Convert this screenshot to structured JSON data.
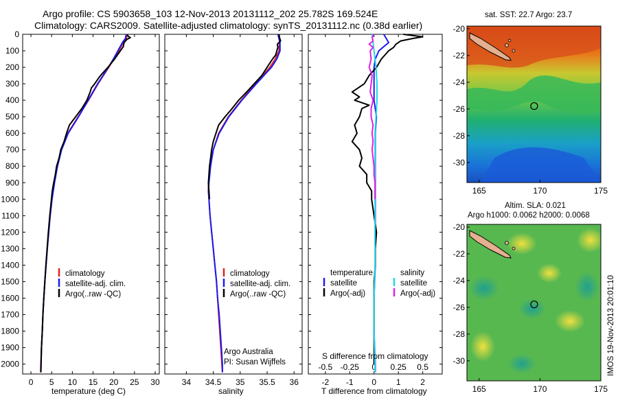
{
  "header": {
    "line1": "Argo profile: CS 5903658_103 12-Nov-2013 20131112_202 25.782S 169.524E",
    "line2": "Climatology: CARS2009. Satellite-adjusted climatology: synTS_20131112.nc (0.38d earlier)"
  },
  "side_stamp": "IMOS 19-Nov-2013 20:01:10",
  "colors": {
    "climatology": "#e02020",
    "satellite": "#1a1af0",
    "argo": "#000000",
    "satellite_s": "#20d8e8",
    "argo_s": "#e020e0",
    "frame": "#000000"
  },
  "chart_data": [
    {
      "type": "line",
      "id": "temperature",
      "xlabel": "temperature (deg C)",
      "xlim": [
        -2,
        31
      ],
      "xticks": [
        0,
        5,
        10,
        15,
        20,
        25,
        30
      ],
      "ylim": [
        0,
        2060
      ],
      "yticks": [
        0,
        100,
        200,
        300,
        400,
        500,
        600,
        700,
        800,
        900,
        1000,
        1100,
        1200,
        1300,
        1400,
        1500,
        1600,
        1700,
        1800,
        1900,
        2000
      ],
      "legend": [
        "climatology",
        "satellite-adj. clim.",
        "Argo(..raw -QC)"
      ],
      "series": [
        {
          "name": "climatology",
          "color": "#e02020",
          "depth": [
            0,
            25,
            50,
            100,
            150,
            200,
            250,
            300,
            400,
            500,
            600,
            700,
            800,
            900,
            1000,
            1100,
            1200,
            1300,
            1400,
            1500,
            1600,
            1700,
            1800,
            1900,
            2000,
            2050
          ],
          "values": [
            23.3,
            23.0,
            22.3,
            21.2,
            20.0,
            18.8,
            17.5,
            16.2,
            13.9,
            11.4,
            8.9,
            7.3,
            6.3,
            5.6,
            5.05,
            4.6,
            4.25,
            3.95,
            3.65,
            3.35,
            3.1,
            2.9,
            2.75,
            2.55,
            2.4,
            2.35
          ]
        },
        {
          "name": "satellite-adj. clim.",
          "color": "#1a1af0",
          "depth": [
            0,
            25,
            50,
            100,
            150,
            200,
            250,
            300,
            400,
            500,
            600,
            700,
            800,
            900,
            1000,
            1100,
            1200,
            1300,
            1400,
            1500,
            1600,
            1700,
            1800,
            1900,
            2000,
            2050
          ],
          "values": [
            23.0,
            22.8,
            22.1,
            21.0,
            19.9,
            18.7,
            17.4,
            16.1,
            13.8,
            11.5,
            9.0,
            7.4,
            6.4,
            5.7,
            5.1,
            4.65,
            4.3,
            3.95,
            3.65,
            3.35,
            3.1,
            2.9,
            2.75,
            2.55,
            2.45,
            2.4
          ]
        },
        {
          "name": "Argo(..raw -QC)",
          "color": "#000000",
          "depth": [
            0,
            10,
            20,
            30,
            50,
            75,
            100,
            125,
            150,
            200,
            250,
            270,
            300,
            325,
            350,
            400,
            450,
            500,
            550,
            600,
            650,
            700,
            750,
            800,
            850,
            900,
            950,
            1000,
            1100,
            1200,
            1300,
            1400,
            1500,
            1600,
            1700,
            1800,
            1900,
            2000,
            2050
          ],
          "values": [
            23.3,
            23.4,
            24.0,
            23.2,
            22.5,
            22.3,
            21.6,
            20.9,
            20.2,
            18.6,
            16.8,
            16.2,
            15.4,
            14.6,
            14.3,
            13.5,
            12.3,
            10.8,
            9.3,
            8.6,
            8.0,
            7.2,
            6.8,
            6.2,
            5.9,
            5.5,
            5.15,
            4.95,
            4.55,
            4.2,
            3.9,
            3.6,
            3.35,
            3.1,
            2.9,
            2.75,
            2.55,
            2.45,
            2.4
          ]
        }
      ]
    },
    {
      "type": "line",
      "id": "salinity",
      "xlabel": "salinity",
      "xlim": [
        33.6,
        36.15
      ],
      "xticks": [
        34,
        34.5,
        35,
        35.5,
        36
      ],
      "ylim": [
        0,
        2060
      ],
      "legend": [
        "climatology",
        "satellite-adj. clim.",
        "Argo(..raw -QC)"
      ],
      "annotation": [
        "Argo Australia",
        "PI: Susan Wijffels"
      ],
      "series": [
        {
          "name": "climatology",
          "color": "#e02020",
          "depth": [
            0,
            50,
            100,
            150,
            200,
            250,
            300,
            400,
            500,
            600,
            700,
            800,
            900,
            950,
            1000,
            1100,
            1200,
            1300,
            1400,
            1500,
            1600,
            1700,
            1800,
            1900,
            2000,
            2050
          ],
          "values": [
            35.72,
            35.73,
            35.72,
            35.65,
            35.55,
            35.42,
            35.28,
            35.02,
            34.78,
            34.6,
            34.5,
            34.44,
            34.41,
            34.41,
            34.42,
            34.44,
            34.47,
            34.5,
            34.53,
            34.56,
            34.58,
            34.6,
            34.62,
            34.64,
            34.66,
            34.67
          ]
        },
        {
          "name": "satellite-adj. clim.",
          "color": "#1a1af0",
          "depth": [
            0,
            50,
            100,
            150,
            200,
            250,
            300,
            400,
            500,
            600,
            700,
            800,
            900,
            950,
            1000,
            1100,
            1200,
            1300,
            1400,
            1500,
            1600,
            1700,
            1800,
            1900,
            2000,
            2050
          ],
          "values": [
            35.7,
            35.74,
            35.74,
            35.68,
            35.58,
            35.44,
            35.3,
            35.03,
            34.79,
            34.61,
            34.5,
            34.45,
            34.42,
            34.41,
            34.42,
            34.44,
            34.47,
            34.5,
            34.53,
            34.56,
            34.58,
            34.61,
            34.63,
            34.65,
            34.67,
            34.67
          ]
        },
        {
          "name": "Argo(..raw -QC)",
          "color": "#000000",
          "depth": [
            0,
            20,
            40,
            60,
            80,
            100,
            125,
            150,
            175,
            200,
            250,
            300,
            350,
            400,
            450,
            500,
            550,
            600,
            650,
            700,
            750,
            800,
            850,
            900,
            950,
            1000
          ],
          "values": [
            35.72,
            35.73,
            35.75,
            35.69,
            35.7,
            35.68,
            35.66,
            35.6,
            35.55,
            35.5,
            35.4,
            35.26,
            35.12,
            34.97,
            34.85,
            34.72,
            34.6,
            34.55,
            34.5,
            34.47,
            34.45,
            34.43,
            34.42,
            34.41,
            34.42,
            34.43
          ]
        }
      ]
    },
    {
      "type": "line",
      "id": "difference",
      "xlabel": "T difference from climatology",
      "xlabel_top": "S difference from climatology",
      "xlim": [
        -2.7,
        2.8
      ],
      "xticks": [
        -2,
        -1,
        0,
        1,
        2
      ],
      "xticks_s": [
        "-0.5",
        "-0.25",
        "0",
        "0.25",
        "0.5"
      ],
      "ylim": [
        0,
        2060
      ],
      "legend_t": [
        "temperature",
        "satellite",
        "Argo(-adj)"
      ],
      "legend_s": [
        "salinity",
        "satellite",
        "Argo(-adj)"
      ],
      "series": [
        {
          "name": "T satellite",
          "color": "#1a1af0",
          "depth": [
            0,
            50,
            100,
            150,
            200,
            250,
            300,
            400,
            500,
            600,
            700,
            800,
            900,
            1000,
            1200,
            1400,
            1600,
            1800,
            2000,
            2050
          ],
          "values": [
            0.4,
            0.6,
            0.2,
            0.05,
            0.0,
            0.0,
            0.0,
            0.0,
            0.1,
            0.05,
            0.05,
            0.05,
            0.05,
            0.05,
            0.05,
            0.05,
            0.0,
            0.0,
            0.05,
            0.05
          ]
        },
        {
          "name": "T Argo(-adj)",
          "color": "#000000",
          "depth": [
            0,
            15,
            25,
            40,
            60,
            80,
            100,
            150,
            200,
            250,
            300,
            350,
            380,
            400,
            430,
            450,
            500,
            550,
            600,
            650,
            700,
            750,
            800,
            850,
            900,
            950,
            1000,
            1100,
            1200,
            1300,
            1400,
            1500,
            1600,
            1700,
            1800,
            1900,
            2000
          ],
          "values": [
            1.2,
            2.0,
            1.6,
            1.1,
            0.9,
            0.8,
            0.6,
            0.3,
            0.1,
            -0.2,
            -0.4,
            -0.9,
            -0.6,
            -0.8,
            -0.2,
            -0.5,
            -0.6,
            -0.8,
            -0.7,
            -0.9,
            -0.6,
            -0.5,
            -0.6,
            -0.3,
            -0.3,
            -0.1,
            -0.1,
            0.0,
            0.1,
            0.05,
            0.05,
            0.0,
            0.0,
            0.0,
            0.0,
            0.0,
            0.0
          ]
        },
        {
          "name": "S satellite",
          "color": "#20d8e8",
          "depth": [
            0,
            50,
            100,
            150,
            200,
            300,
            400,
            500,
            600,
            700,
            800,
            900,
            1000,
            1200,
            1400,
            1600,
            1800,
            2000,
            2050
          ],
          "values": [
            -0.02,
            -0.01,
            0.0,
            0.01,
            0.02,
            0.03,
            0.03,
            0.02,
            0.01,
            0.01,
            0.01,
            0.01,
            0.01,
            0.01,
            0.01,
            0.0,
            0.0,
            0.01,
            0.01
          ]
        },
        {
          "name": "S Argo(-adj)",
          "color": "#e020e0",
          "depth": [
            0,
            20,
            40,
            60,
            80,
            100,
            150,
            200,
            250,
            300,
            350,
            400,
            450,
            500,
            550,
            600,
            650,
            700,
            750,
            800,
            850,
            900,
            950,
            1000
          ],
          "values": [
            0.0,
            -0.02,
            -0.01,
            -0.05,
            -0.01,
            -0.04,
            -0.03,
            -0.05,
            -0.02,
            -0.03,
            -0.04,
            -0.01,
            -0.03,
            -0.03,
            -0.01,
            -0.02,
            -0.01,
            -0.02,
            -0.01,
            0.0,
            0.0,
            0.01,
            0.01,
            0.01
          ]
        }
      ]
    },
    {
      "type": "heatmap",
      "id": "sst-map",
      "title": "sat. SST: 22.7  Argo: 23.7",
      "xticks": [
        165,
        170,
        175
      ],
      "yticks": [
        -20,
        -22,
        -24,
        -26,
        -28,
        -30
      ],
      "xlim": [
        164,
        175
      ],
      "ylim": [
        -31.5,
        -19.8
      ],
      "argo_position": {
        "lon": 169.524,
        "lat": -25.782
      }
    },
    {
      "type": "heatmap",
      "id": "sla-map",
      "title": "Altim. SLA: 0.021",
      "subtitle": "Argo h1000: 0.0062 h2000: 0.0068",
      "xticks": [
        165,
        170,
        175
      ],
      "yticks": [
        -20,
        -22,
        -24,
        -26,
        -28,
        -30
      ],
      "xlim": [
        164,
        175
      ],
      "ylim": [
        -31.5,
        -19.8
      ],
      "argo_position": {
        "lon": 169.524,
        "lat": -25.782
      }
    }
  ]
}
